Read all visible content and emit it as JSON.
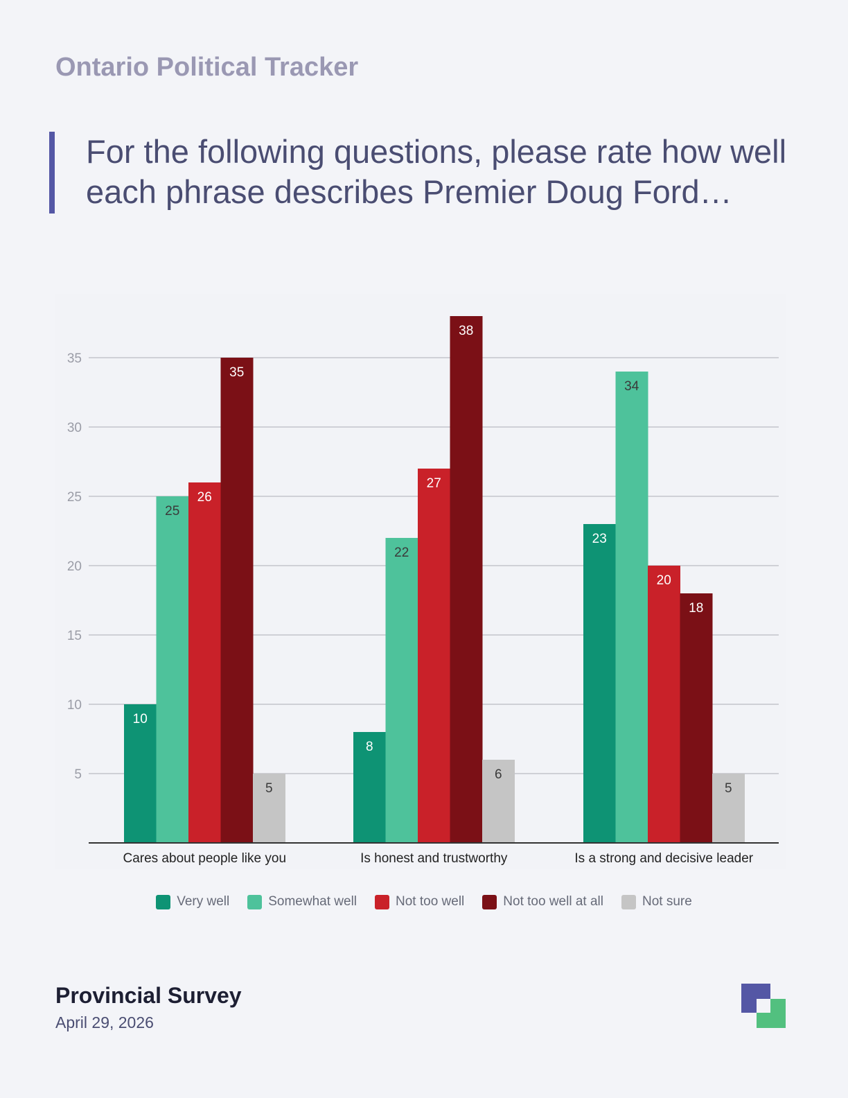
{
  "header": {
    "title": "Ontario Political Tracker"
  },
  "question": "For the following questions, please rate how well each phrase describes Premier Doug Ford…",
  "footer": {
    "title": "Provincial Survey",
    "date": "April 29, 2026"
  },
  "logo": {
    "icon": "brand-squares-icon",
    "colors": [
      "#5457a5",
      "#52c07f"
    ]
  },
  "chart_data": {
    "type": "bar",
    "categories": [
      "Cares about people like you",
      "Is honest and trustworthy",
      "Is a strong and decisive leader"
    ],
    "series": [
      {
        "name": "Very well",
        "color": "#0e9374",
        "values": [
          10,
          8,
          23
        ]
      },
      {
        "name": "Somewhat well",
        "color": "#4ec29b",
        "values": [
          25,
          22,
          34
        ]
      },
      {
        "name": "Not too well",
        "color": "#c92129",
        "values": [
          26,
          27,
          20
        ]
      },
      {
        "name": "Not too well at all",
        "color": "#7b1016",
        "values": [
          35,
          38,
          18
        ]
      },
      {
        "name": "Not sure",
        "color": "#c5c5c5",
        "values": [
          5,
          6,
          5
        ]
      }
    ],
    "yticks": [
      5,
      10,
      15,
      20,
      25,
      30,
      35
    ],
    "ylim": [
      0,
      40
    ],
    "grid": true,
    "legend": "bottom",
    "title": "",
    "xlabel": "",
    "ylabel": ""
  }
}
